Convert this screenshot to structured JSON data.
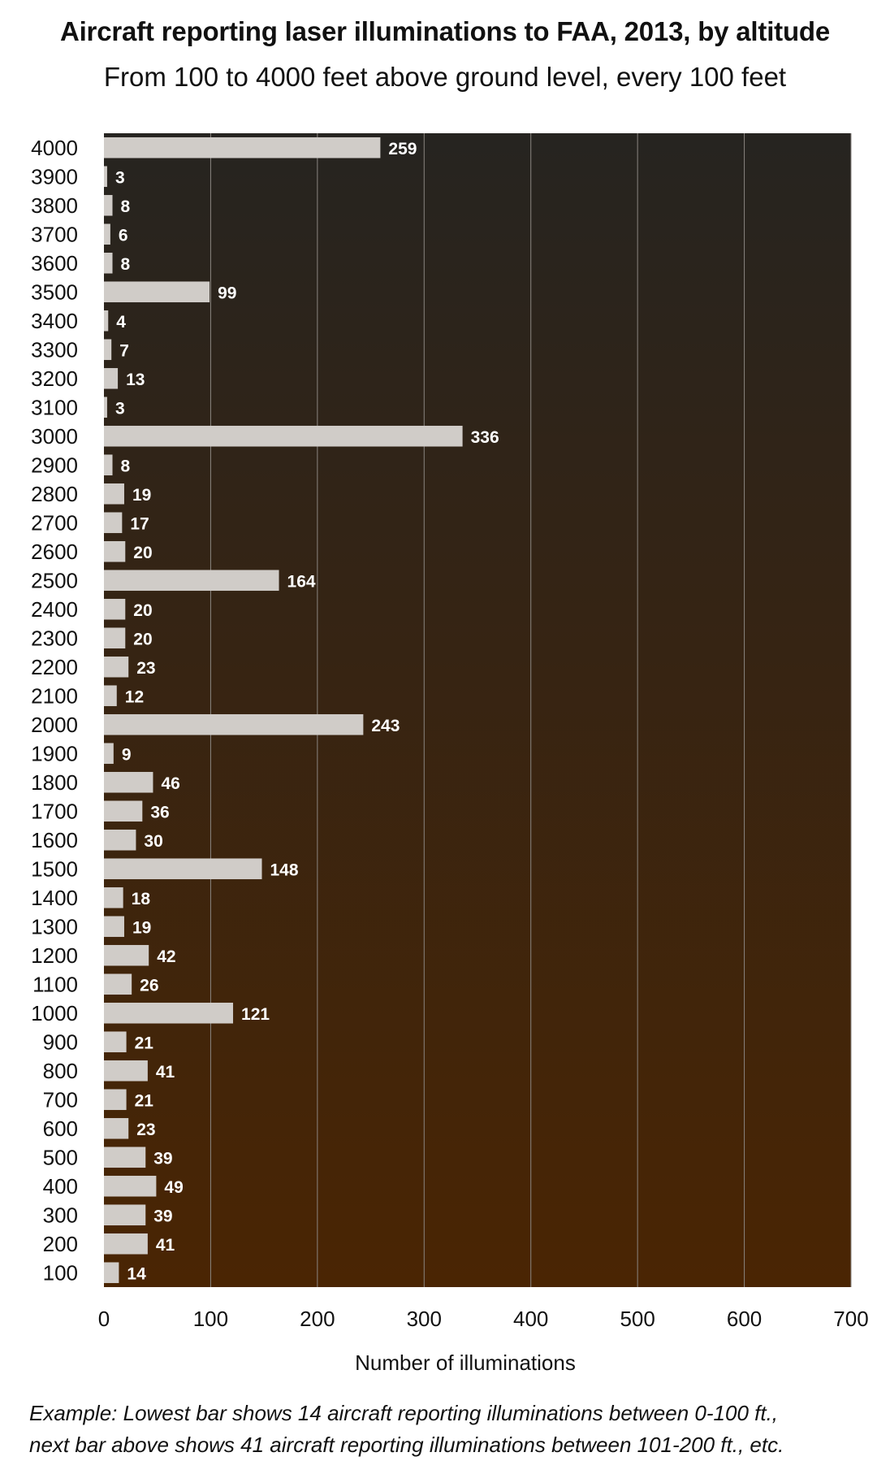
{
  "chart_data": {
    "type": "bar",
    "orientation": "horizontal",
    "title": "Aircraft reporting laser illuminations to FAA, 2013, by altitude",
    "subtitle": "From 100 to 4000 feet above ground level, every 100 feet",
    "xlabel": "Number of illuminations",
    "ylabel": "",
    "xlim": [
      0,
      700
    ],
    "xticks": [
      0,
      100,
      200,
      300,
      400,
      500,
      600,
      700
    ],
    "grid": true,
    "categories": [
      "4000",
      "3900",
      "3800",
      "3700",
      "3600",
      "3500",
      "3400",
      "3300",
      "3200",
      "3100",
      "3000",
      "2900",
      "2800",
      "2700",
      "2600",
      "2500",
      "2400",
      "2300",
      "2200",
      "2100",
      "2000",
      "1900",
      "1800",
      "1700",
      "1600",
      "1500",
      "1400",
      "1300",
      "1200",
      "1100",
      "1000",
      "900",
      "800",
      "700",
      "600",
      "500",
      "400",
      "300",
      "200",
      "100"
    ],
    "values": [
      259,
      3,
      8,
      6,
      8,
      99,
      4,
      7,
      13,
      3,
      336,
      8,
      19,
      17,
      20,
      164,
      20,
      20,
      23,
      12,
      243,
      9,
      46,
      36,
      30,
      148,
      18,
      19,
      42,
      26,
      121,
      21,
      41,
      21,
      23,
      39,
      49,
      39,
      41,
      14
    ],
    "colors": {
      "bar": "#d0ccc8",
      "background_top": "#262420",
      "background_bottom": "#4a2503",
      "gridline": "#8a8580"
    },
    "footnote": [
      "Example:  Lowest bar shows 14 aircraft reporting illuminations between 0-100 ft.,",
      "next bar above shows 41 aircraft reporting illuminations between 101-200 ft., etc."
    ]
  }
}
